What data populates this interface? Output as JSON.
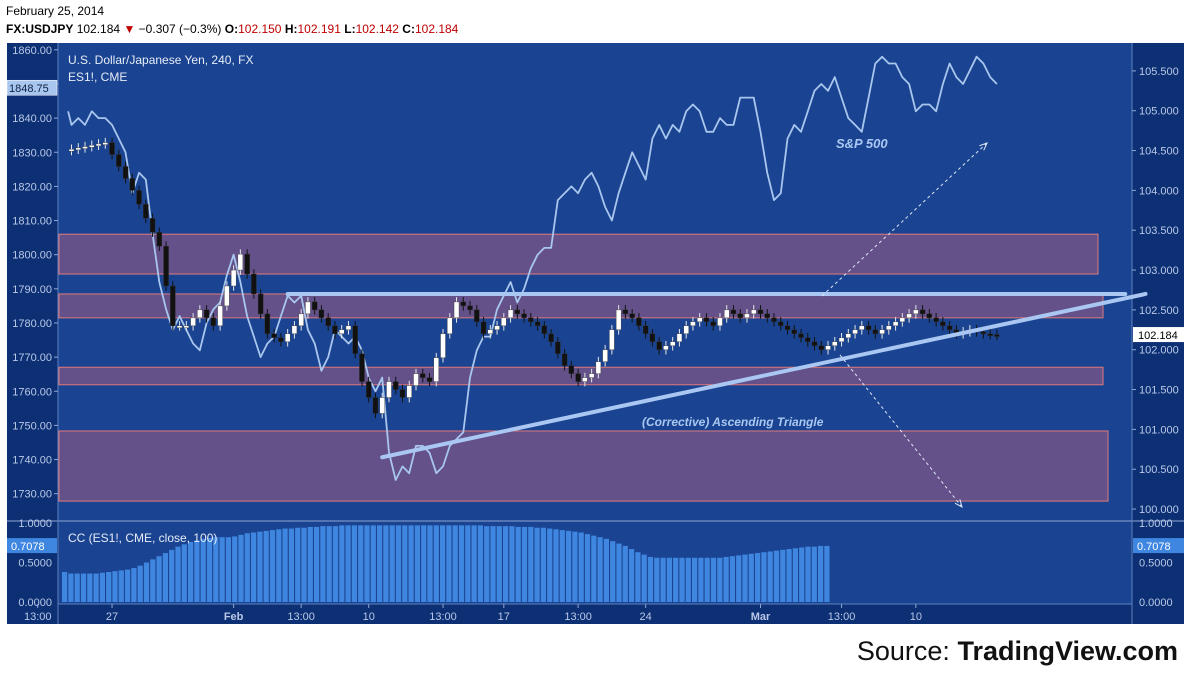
{
  "header": {
    "date": "February 25, 2014",
    "symbol": "FX:USDJPY",
    "price": "102.184",
    "change": "−0.307 (−0.3%)",
    "open_label": "O:",
    "open": "102.150",
    "high_label": "H:",
    "high": "102.191",
    "low_label": "L:",
    "low": "102.142",
    "close_label": "C:",
    "close": "102.184"
  },
  "chart_data": {
    "type": "line",
    "title": "U.S. Dollar/Japanese Yen, 240, FX",
    "subtitle": "ES1!, CME",
    "xlabel": "",
    "ylabel": "",
    "x_ticks": [
      "13:00",
      "27",
      "Feb",
      "13:00",
      "10",
      "13:00",
      "17",
      "13:00",
      "24",
      "Mar",
      "13:00",
      "10"
    ],
    "left_axis": {
      "ticks": [
        1860,
        1850,
        1840,
        1830,
        1820,
        1810,
        1800,
        1790,
        1780,
        1770,
        1760,
        1750,
        1740,
        1730
      ],
      "tick_labels": [
        "1860.00",
        "1850.00",
        "1840.00",
        "1830.00",
        "1820.00",
        "1810.00",
        "1800.00",
        "1790.00",
        "1780.00",
        "1770.00",
        "1760.00",
        "1750.00",
        "1740.00",
        "1730.00"
      ],
      "ylim": [
        1722,
        1862
      ],
      "last_value_label": "1848.75"
    },
    "right_axis": {
      "ticks": [
        105.5,
        105,
        104.5,
        104,
        103.5,
        103,
        102.5,
        102,
        101.5,
        101,
        100.5,
        100
      ],
      "tick_labels": [
        "105.500",
        "105.000",
        "104.500",
        "104.000",
        "103.500",
        "103.000",
        "102.500",
        "102.000",
        "101.500",
        "101.000",
        "100.500",
        "100.000"
      ],
      "ylim": [
        99.85,
        105.85
      ],
      "last_value_label": "102.184"
    },
    "series": [
      {
        "name": "S&P 500",
        "axis": "left",
        "x": [
          0.5,
          1,
          2,
          3,
          4,
          5,
          6,
          7,
          8,
          9,
          10,
          11,
          12,
          13,
          14,
          15,
          16,
          17,
          18,
          19,
          20,
          21,
          22,
          23,
          24,
          25,
          26,
          27,
          28,
          29,
          30,
          31,
          32,
          33,
          34,
          35,
          36,
          37,
          38,
          39,
          40,
          41,
          42,
          43,
          44,
          45,
          46,
          47,
          48,
          49,
          50,
          51,
          52,
          53,
          54,
          55,
          56,
          57,
          58,
          59,
          60,
          61,
          62,
          63,
          64,
          65,
          66,
          67,
          68,
          69,
          70,
          71,
          72,
          73,
          74,
          75,
          76,
          77,
          78,
          79,
          80,
          81,
          82,
          83,
          84,
          85,
          86,
          87,
          88,
          89,
          90,
          91,
          92,
          93,
          94,
          95,
          96,
          97,
          98,
          99,
          100,
          101,
          102,
          103,
          104,
          105,
          106,
          107,
          108,
          109,
          110,
          111,
          112,
          113,
          114,
          115,
          116,
          117,
          118,
          119,
          120,
          121,
          122,
          123,
          124,
          125,
          126,
          127,
          128,
          129,
          130,
          131,
          132,
          133,
          134,
          135,
          136,
          137,
          138
        ],
        "values": [
          1842,
          1838,
          1840,
          1838,
          1842,
          1840,
          1840,
          1838,
          1834,
          1830,
          1818,
          1824,
          1822,
          1806,
          1792,
          1784,
          1778,
          1782,
          1778,
          1774,
          1772,
          1780,
          1784,
          1786,
          1794,
          1800,
          1792,
          1782,
          1776,
          1770,
          1774,
          1776,
          1782,
          1788,
          1786,
          1788,
          1778,
          1774,
          1766,
          1770,
          1778,
          1776,
          1774,
          1776,
          1772,
          1764,
          1760,
          1764,
          1742,
          1734,
          1738,
          1736,
          1744,
          1744,
          1742,
          1736,
          1738,
          1744,
          1746,
          1748,
          1764,
          1772,
          1776,
          1776,
          1784,
          1788,
          1792,
          1786,
          1790,
          1796,
          1800,
          1802,
          1802,
          1816,
          1818,
          1820,
          1818,
          1822,
          1824,
          1820,
          1814,
          1810,
          1818,
          1824,
          1830,
          1826,
          1822,
          1834,
          1838,
          1834,
          1838,
          1836,
          1842,
          1844,
          1842,
          1836,
          1836,
          1840,
          1838,
          1838,
          1846,
          1846,
          1846,
          1836,
          1824,
          1816,
          1818,
          1834,
          1838,
          1836,
          1842,
          1848,
          1850,
          1848,
          1852,
          1846,
          1840,
          1838,
          1836,
          1846,
          1856,
          1858,
          1856,
          1856,
          1852,
          1850,
          1842,
          1844,
          1844,
          1842,
          1850,
          1856,
          1852,
          1850,
          1854,
          1858,
          1856,
          1852,
          1850
        ],
        "color": "#a8c6ee"
      },
      {
        "name": "USDJPY",
        "axis": "right",
        "type": "candlestick",
        "close_x": [
          0,
          6,
          10,
          14,
          16,
          18,
          20,
          22,
          24,
          26,
          28,
          30,
          32,
          34,
          36,
          38,
          40,
          42,
          44,
          46,
          48,
          50,
          52,
          54,
          56,
          58,
          60,
          62,
          64,
          66,
          68,
          70,
          72,
          74,
          76,
          78,
          80,
          82,
          84,
          86,
          88,
          90,
          92,
          94,
          96,
          98,
          100,
          102,
          104,
          106,
          108,
          110,
          112,
          114,
          116,
          118,
          120,
          122,
          124,
          126,
          128,
          130,
          132,
          134,
          136,
          138
        ],
        "close_values": [
          104.5,
          104.6,
          104.0,
          103.3,
          102.3,
          102.3,
          102.5,
          102.3,
          102.8,
          103.2,
          102.7,
          102.2,
          102.1,
          102.3,
          102.6,
          102.4,
          102.2,
          102.3,
          101.6,
          101.2,
          101.6,
          101.4,
          101.7,
          101.6,
          102.2,
          102.6,
          102.5,
          102.2,
          102.3,
          102.5,
          102.4,
          102.3,
          102.1,
          101.8,
          101.6,
          101.7,
          102.0,
          102.5,
          102.4,
          102.2,
          102.0,
          102.1,
          102.3,
          102.4,
          102.3,
          102.5,
          102.4,
          102.5,
          102.4,
          102.3,
          102.2,
          102.1,
          102.0,
          102.1,
          102.2,
          102.3,
          102.2,
          102.3,
          102.4,
          102.5,
          102.4,
          102.3,
          102.2,
          102.25,
          102.2,
          102.18
        ]
      }
    ],
    "zones": [
      {
        "from": 102.95,
        "to": 103.45
      },
      {
        "from": 102.4,
        "to": 102.7
      },
      {
        "from": 101.56,
        "to": 101.78
      },
      {
        "from": 100.1,
        "to": 100.98
      }
    ],
    "annotations": [
      {
        "text": "S&P 500"
      },
      {
        "text": "(Corrective) Ascending Triangle"
      }
    ],
    "trendlines": {
      "resistance": {
        "level": 102.7
      },
      "support": {
        "from": [
          47,
          100.65
        ],
        "to": [
          160,
          102.7
        ]
      }
    },
    "subchart": {
      "label": "CC (ES1!, CME, close, 100)",
      "last_value_label": "0.7078",
      "ticks": [
        1.0,
        0.5,
        0.0
      ],
      "tick_labels": [
        "1.0000",
        "0.5000",
        "0.0000"
      ],
      "ylim": [
        0,
        1.0
      ],
      "values": [
        0.38,
        0.36,
        0.36,
        0.36,
        0.36,
        0.36,
        0.37,
        0.38,
        0.39,
        0.4,
        0.41,
        0.43,
        0.46,
        0.5,
        0.54,
        0.58,
        0.62,
        0.66,
        0.7,
        0.73,
        0.76,
        0.78,
        0.8,
        0.81,
        0.82,
        0.82,
        0.82,
        0.83,
        0.85,
        0.87,
        0.88,
        0.89,
        0.9,
        0.91,
        0.92,
        0.93,
        0.93,
        0.94,
        0.94,
        0.95,
        0.95,
        0.96,
        0.96,
        0.96,
        0.97,
        0.97,
        0.97,
        0.97,
        0.97,
        0.97,
        0.97,
        0.97,
        0.97,
        0.97,
        0.97,
        0.97,
        0.97,
        0.97,
        0.97,
        0.97,
        0.97,
        0.97,
        0.97,
        0.97,
        0.97,
        0.97,
        0.97,
        0.96,
        0.96,
        0.96,
        0.96,
        0.96,
        0.95,
        0.95,
        0.95,
        0.94,
        0.94,
        0.93,
        0.92,
        0.91,
        0.9,
        0.89,
        0.88,
        0.86,
        0.84,
        0.82,
        0.8,
        0.77,
        0.74,
        0.71,
        0.67,
        0.63,
        0.6,
        0.57,
        0.56,
        0.56,
        0.56,
        0.56,
        0.56,
        0.56,
        0.56,
        0.56,
        0.56,
        0.56,
        0.56,
        0.57,
        0.58,
        0.59,
        0.6,
        0.61,
        0.62,
        0.63,
        0.64,
        0.65,
        0.66,
        0.67,
        0.68,
        0.69,
        0.7,
        0.7,
        0.71,
        0.71
      ]
    }
  },
  "source": {
    "prefix": "Source: ",
    "name": "TradingView.com"
  }
}
